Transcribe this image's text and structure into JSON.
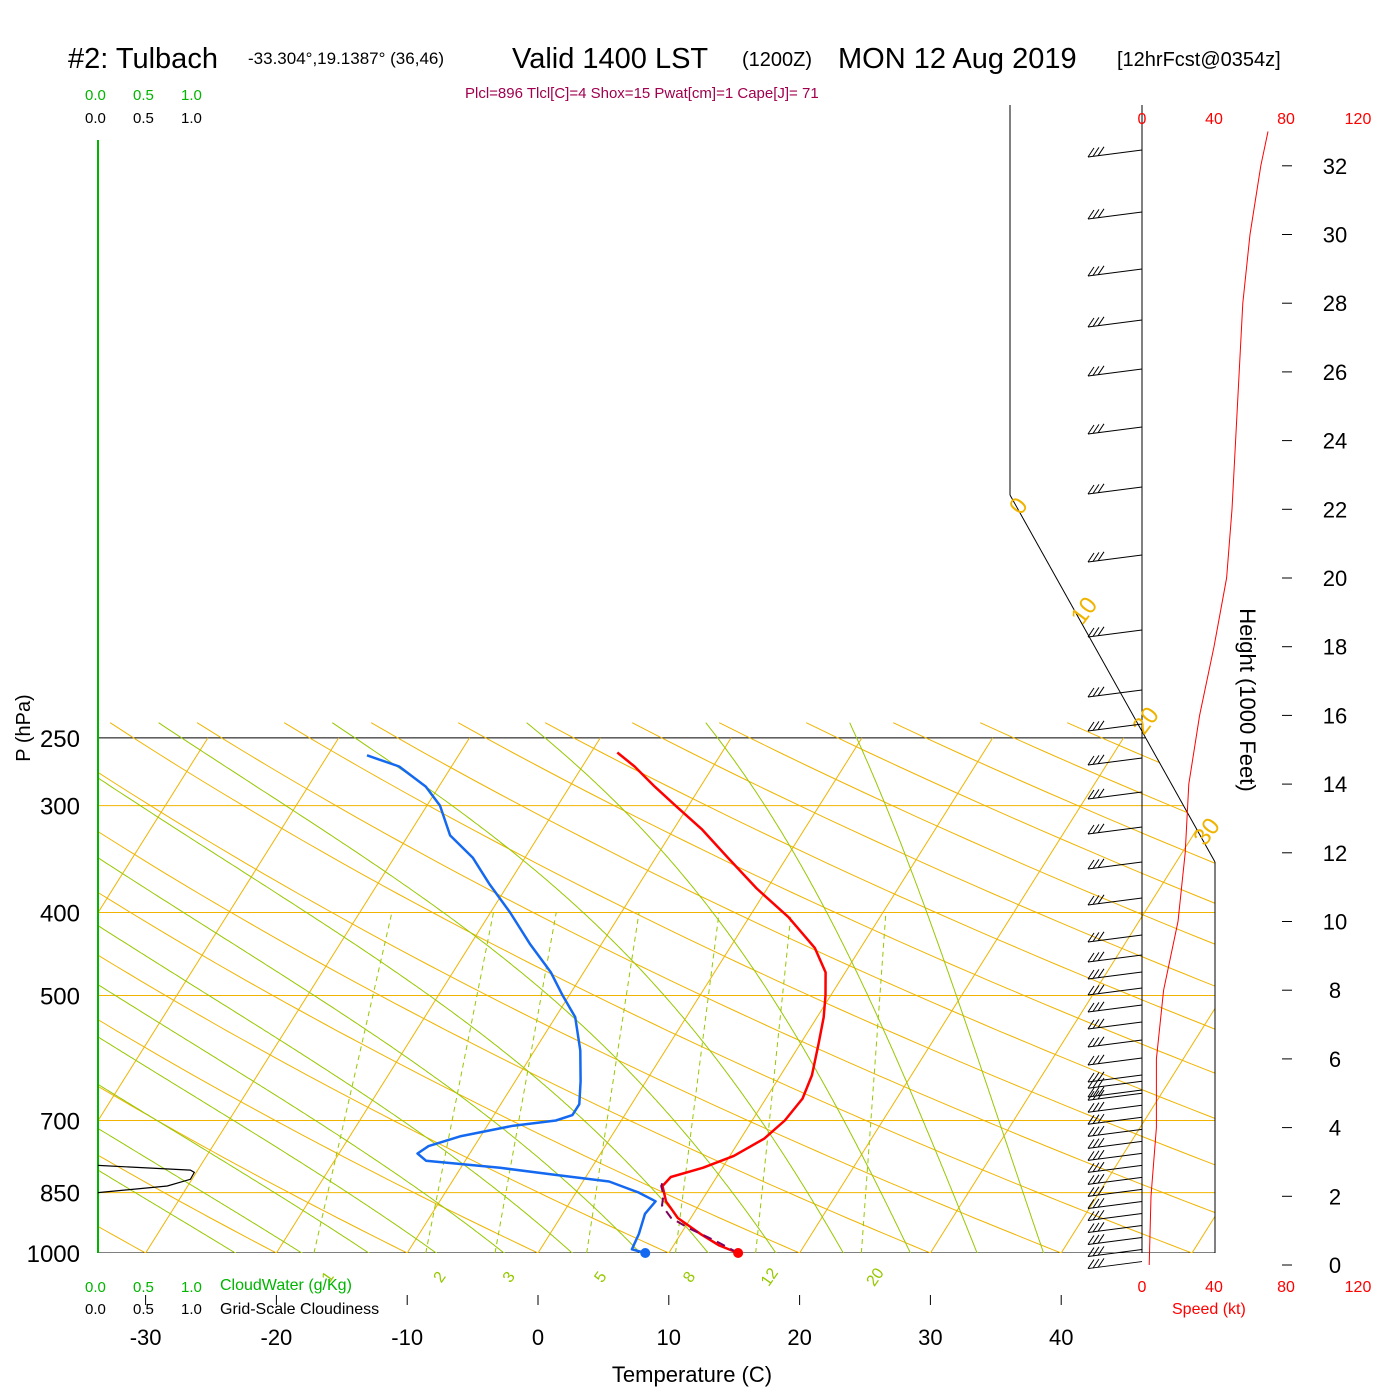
{
  "header": {
    "station": "#2: Tulbach",
    "coords": "-33.304°,19.1387° (36,46)",
    "valid": "Valid 1400 LST",
    "utc": "(1200Z)",
    "date": "MON 12 Aug 2019",
    "fcst": "[12hrFcst@0354z]",
    "indices": "Plcl=896 Tlcl[C]=4 Shox=15 Pwat[cm]=1 Cape[J]= 71"
  },
  "labels": {
    "xlabel": "Temperature (C)",
    "ylabel": "P (hPa)",
    "height_label": "Height (1000 Feet)",
    "speed_label": "Speed (kt)",
    "cloudwater_label": "CloudWater (g/Kg)",
    "cloudiness_label": "Grid-Scale Cloudiness"
  },
  "colors": {
    "temperature": "#ff0000",
    "dewpoint": "#1469f0",
    "parcel": "#800060",
    "isotherm": "#f0b400",
    "dry_adiabat": "#f0b400",
    "moist_adiabat": "#96c800",
    "mixing_ratio": "#96c800",
    "cloud_scale": "#00b400",
    "index_text": "#a0004e",
    "speed": "#ff0000"
  },
  "chart_data": {
    "type": "line",
    "xlim": [
      -34,
      36
    ],
    "ylim": [
      1000,
      250
    ],
    "y_scale": "log-pressure",
    "x_ticks": [
      "-30",
      "-20",
      "-10",
      "0",
      "10",
      "20",
      "30",
      "40"
    ],
    "x_tick_values": [
      -30,
      -20,
      -10,
      0,
      10,
      20,
      30,
      40
    ],
    "y_ticks": [
      "250",
      "300",
      "400",
      "500",
      "700",
      "850",
      "1000"
    ],
    "y_tick_values": [
      250,
      300,
      400,
      500,
      700,
      850,
      1000
    ],
    "isotherm_labels": [
      {
        "text": "10",
        "t": 10
      },
      {
        "text": "0",
        "t": 0
      },
      {
        "text": "-10",
        "t": -10
      },
      {
        "text": "-20",
        "t": -20
      },
      {
        "text": "-30",
        "t": -30
      }
    ],
    "side_isotherm_labels": [
      {
        "text": "0",
        "t": 0
      },
      {
        "text": "10",
        "t": 10
      },
      {
        "text": "20",
        "t": 20
      },
      {
        "text": "30",
        "t": 30
      }
    ],
    "mixing_ratio_labels": [
      "1",
      "2",
      "3",
      "5",
      "8",
      "12",
      "20"
    ],
    "mixing_ratio_values": [
      1,
      2,
      3,
      5,
      8,
      12,
      20
    ],
    "series": [
      {
        "name": "Temperature",
        "points": [
          [
            15.3,
            1000
          ],
          [
            13.5,
            980
          ],
          [
            11.5,
            950
          ],
          [
            9,
            910
          ],
          [
            7.3,
            870
          ],
          [
            6.3,
            835
          ],
          [
            6.5,
            815
          ],
          [
            8.5,
            795
          ],
          [
            10.3,
            770
          ],
          [
            11.8,
            735
          ],
          [
            12.5,
            700
          ],
          [
            12.8,
            660
          ],
          [
            12.4,
            620
          ],
          [
            11.4,
            570
          ],
          [
            10.5,
            530
          ],
          [
            9.6,
            500
          ],
          [
            8.5,
            470
          ],
          [
            6.5,
            440
          ],
          [
            3,
            405
          ],
          [
            -0.8,
            375
          ],
          [
            -4.5,
            345
          ],
          [
            -7.8,
            320
          ],
          [
            -11,
            300
          ],
          [
            -13.5,
            285
          ],
          [
            -16,
            270
          ],
          [
            -18,
            260
          ]
        ]
      },
      {
        "name": "Dewpoint",
        "points": [
          [
            8.2,
            1000
          ],
          [
            7,
            990
          ],
          [
            6.8,
            950
          ],
          [
            6.3,
            900
          ],
          [
            6.5,
            870
          ],
          [
            4.8,
            850
          ],
          [
            2,
            825
          ],
          [
            -2.5,
            810
          ],
          [
            -7,
            795
          ],
          [
            -13,
            780
          ],
          [
            -14,
            765
          ],
          [
            -13.5,
            750
          ],
          [
            -11.5,
            730
          ],
          [
            -8,
            710
          ],
          [
            -5,
            700
          ],
          [
            -4,
            690
          ],
          [
            -4,
            670
          ],
          [
            -5,
            630
          ],
          [
            -6.5,
            580
          ],
          [
            -8.5,
            530
          ],
          [
            -10.5,
            500
          ],
          [
            -12.5,
            470
          ],
          [
            -15.5,
            435
          ],
          [
            -18.5,
            400
          ],
          [
            -21.5,
            370
          ],
          [
            -24,
            345
          ],
          [
            -26.8,
            325
          ],
          [
            -29,
            300
          ],
          [
            -31,
            285
          ],
          [
            -34,
            270
          ],
          [
            -37,
            262
          ]
        ]
      },
      {
        "name": "Parcel",
        "points": [
          [
            15.3,
            1000
          ],
          [
            13,
            968
          ],
          [
            10.3,
            935
          ],
          [
            8.5,
            910
          ],
          [
            7.2,
            880
          ],
          [
            6.8,
            855
          ],
          [
            6.2,
            835
          ],
          [
            6.1,
            822
          ]
        ]
      }
    ],
    "surface_temperature": 15.3,
    "surface_dewpoint": 8.2,
    "speed_axis": {
      "ticks": [
        "0",
        "40",
        "80",
        "120"
      ],
      "values": [
        0,
        40,
        80,
        120
      ]
    },
    "height_axis": {
      "ticks": [
        "0",
        "2",
        "4",
        "6",
        "8",
        "10",
        "12",
        "14",
        "16",
        "18",
        "20",
        "22",
        "24",
        "26",
        "28",
        "30",
        "32"
      ],
      "values": [
        0,
        2,
        4,
        6,
        8,
        10,
        12,
        14,
        16,
        18,
        20,
        22,
        24,
        26,
        28,
        30,
        32
      ]
    },
    "wind_speed_profile": [
      [
        4,
        0
      ],
      [
        5,
        2
      ],
      [
        8,
        4
      ],
      [
        8,
        6
      ],
      [
        12,
        8
      ],
      [
        20,
        10
      ],
      [
        24,
        12
      ],
      [
        26,
        14
      ],
      [
        32,
        16
      ],
      [
        40,
        18
      ],
      [
        47,
        20
      ],
      [
        50,
        22
      ],
      [
        52,
        24
      ],
      [
        54,
        26
      ],
      [
        56,
        28
      ],
      [
        60,
        30
      ],
      [
        66,
        32
      ],
      [
        70,
        33
      ]
    ],
    "cloud_scale": {
      "ticks": [
        "0.0",
        "0.5",
        "1.0"
      ],
      "values": [
        0,
        0.5,
        1.0
      ]
    },
    "cloudiness_profile": [
      [
        0,
        850
      ],
      [
        0.9,
        835
      ],
      [
        1.2,
        820
      ],
      [
        1.25,
        805
      ],
      [
        1.2,
        800
      ],
      [
        0,
        790
      ]
    ]
  }
}
